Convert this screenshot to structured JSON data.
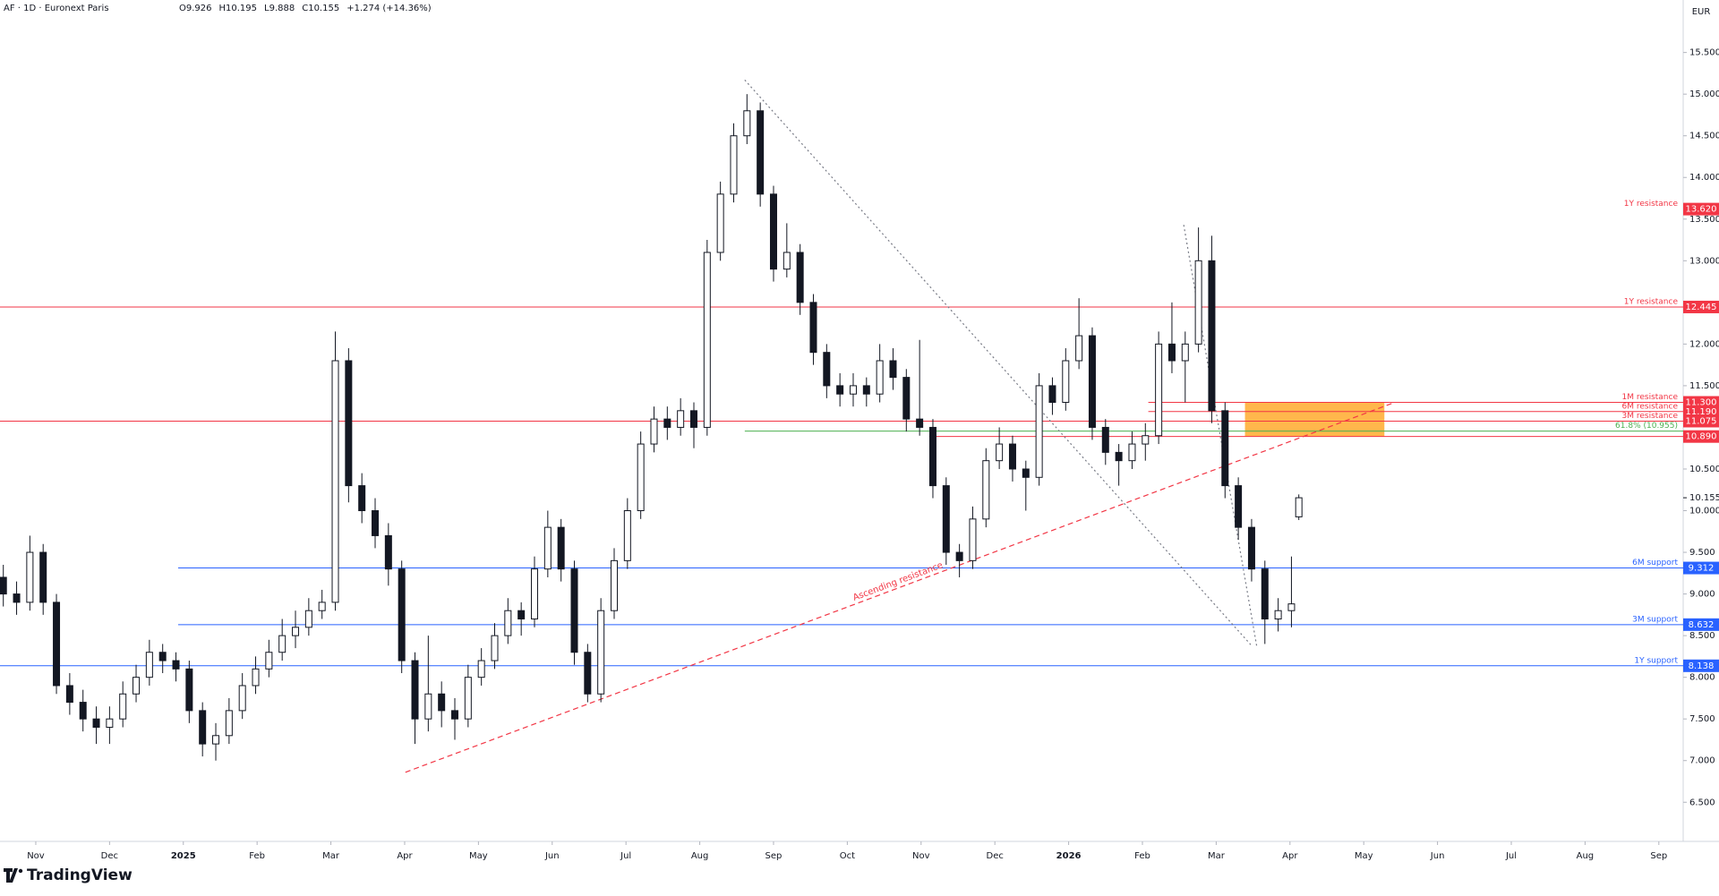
{
  "header": {
    "symbol": "AF · 1D · Euronext Paris",
    "ohlc": [
      "O9.926",
      "H10.195",
      "L9.888",
      "C10.155",
      "+1.274 (+14.36%)"
    ],
    "currency": "EUR",
    "brand": "TradingView"
  },
  "chart_data": {
    "type": "candlestick",
    "up_color": "#ffffff",
    "down_color": "#131722",
    "outline": "#131722",
    "ylim": [
      6.03,
      16.13
    ],
    "yticks": [
      {
        "value": 6.5,
        "label": "6.500"
      },
      {
        "value": 7,
        "label": "7.000"
      },
      {
        "value": 7.5,
        "label": "7.500"
      },
      {
        "value": 8,
        "label": "8.000"
      },
      {
        "value": 8.5,
        "label": "8.500"
      },
      {
        "value": 9,
        "label": "9.000"
      },
      {
        "value": 9.5,
        "label": "9.500"
      },
      {
        "value": 10,
        "label": "10.000"
      },
      {
        "value": 10.5,
        "label": "10.500"
      },
      {
        "value": 11.5,
        "label": "11.500"
      },
      {
        "value": 12,
        "label": "12.000"
      },
      {
        "value": 13,
        "label": "13.000"
      },
      {
        "value": 13.5,
        "label": "13.500"
      },
      {
        "value": 14,
        "label": "14.000"
      },
      {
        "value": 14.5,
        "label": "14.500"
      },
      {
        "value": 15,
        "label": "15.000"
      },
      {
        "value": 15.5,
        "label": "15.500"
      }
    ],
    "xlim": [
      -0.485,
      22.33
    ],
    "xticks": [
      {
        "value": 0,
        "label": "Nov"
      },
      {
        "value": 1,
        "label": "Dec"
      },
      {
        "value": 2,
        "label": "2025"
      },
      {
        "value": 3,
        "label": "Feb"
      },
      {
        "value": 4,
        "label": "Mar"
      },
      {
        "value": 5,
        "label": "Apr"
      },
      {
        "value": 6,
        "label": "May"
      },
      {
        "value": 7,
        "label": "Jun"
      },
      {
        "value": 8,
        "label": "Jul"
      },
      {
        "value": 9,
        "label": "Aug"
      },
      {
        "value": 10,
        "label": "Sep"
      },
      {
        "value": 11,
        "label": "Oct"
      },
      {
        "value": 12,
        "label": "Nov"
      },
      {
        "value": 13,
        "label": "Dec"
      },
      {
        "value": 14,
        "label": "2026"
      },
      {
        "value": 15,
        "label": "Feb"
      },
      {
        "value": 16,
        "label": "Mar"
      },
      {
        "value": 17,
        "label": "Apr"
      },
      {
        "value": 18,
        "label": "May"
      },
      {
        "value": 19,
        "label": "Jun"
      },
      {
        "value": 20,
        "label": "Jul"
      },
      {
        "value": 21,
        "label": "Aug"
      },
      {
        "value": 22,
        "label": "Sep"
      }
    ],
    "x": [
      -0.44,
      -0.26,
      -0.08,
      0.1,
      0.28,
      0.46,
      0.64,
      0.82,
      1.0,
      1.18,
      1.36,
      1.54,
      1.72,
      1.9,
      2.08,
      2.26,
      2.44,
      2.62,
      2.8,
      2.98,
      3.16,
      3.34,
      3.52,
      3.7,
      3.88,
      4.06,
      4.24,
      4.42,
      4.6,
      4.78,
      4.96,
      5.14,
      5.32,
      5.5,
      5.68,
      5.86,
      6.04,
      6.22,
      6.4,
      6.58,
      6.76,
      6.94,
      7.12,
      7.3,
      7.48,
      7.66,
      7.84,
      8.02,
      8.2,
      8.38,
      8.56,
      8.74,
      8.92,
      9.1,
      9.28,
      9.46,
      9.64,
      9.82,
      10.0,
      10.18,
      10.36,
      10.54,
      10.72,
      10.9,
      11.08,
      11.26,
      11.44,
      11.62,
      11.8,
      11.98,
      12.16,
      12.34,
      12.52,
      12.7,
      12.88,
      13.06,
      13.24,
      13.42,
      13.6,
      13.78,
      13.96,
      14.14,
      14.32,
      14.5,
      14.68,
      14.86,
      15.04,
      15.22,
      15.4,
      15.58,
      15.76,
      15.94,
      16.12,
      16.3,
      16.48,
      16.66,
      16.84,
      17.02,
      17.12
    ],
    "open": [
      9.2,
      9.0,
      8.9,
      9.5,
      8.9,
      7.9,
      7.7,
      7.5,
      7.4,
      7.5,
      7.8,
      8.0,
      8.3,
      8.2,
      8.1,
      7.6,
      7.2,
      7.3,
      7.6,
      7.9,
      8.1,
      8.3,
      8.5,
      8.6,
      8.8,
      8.9,
      11.8,
      10.3,
      10.0,
      9.7,
      9.3,
      8.2,
      7.5,
      7.8,
      7.6,
      7.5,
      8.0,
      8.2,
      8.5,
      8.8,
      8.7,
      9.3,
      9.8,
      9.3,
      8.3,
      7.8,
      8.8,
      9.4,
      10.0,
      10.8,
      11.1,
      11.0,
      11.2,
      11.0,
      13.1,
      13.8,
      14.5,
      14.8,
      13.8,
      12.9,
      13.1,
      12.5,
      11.9,
      11.5,
      11.4,
      11.5,
      11.4,
      11.8,
      11.6,
      11.1,
      11.0,
      10.3,
      9.5,
      9.4,
      9.9,
      10.6,
      10.8,
      10.5,
      10.4,
      11.5,
      11.3,
      11.8,
      12.1,
      11.0,
      10.7,
      10.6,
      10.8,
      10.9,
      12.0,
      11.8,
      12.0,
      13.0,
      11.2,
      10.3,
      9.8,
      9.3,
      8.7,
      8.8,
      9.926
    ],
    "high": [
      9.35,
      9.15,
      9.7,
      9.6,
      9.0,
      8.05,
      7.85,
      7.65,
      7.65,
      7.95,
      8.15,
      8.45,
      8.4,
      8.3,
      8.2,
      7.7,
      7.45,
      7.75,
      8.05,
      8.25,
      8.45,
      8.7,
      8.8,
      8.95,
      9.05,
      12.15,
      11.95,
      10.45,
      10.15,
      9.85,
      9.4,
      8.3,
      8.5,
      7.95,
      7.75,
      8.15,
      8.35,
      8.65,
      8.95,
      8.9,
      9.45,
      10.0,
      9.9,
      9.4,
      8.4,
      8.95,
      9.55,
      10.15,
      10.95,
      11.25,
      11.25,
      11.35,
      11.3,
      13.25,
      13.95,
      14.65,
      15.0,
      14.9,
      13.9,
      13.45,
      13.2,
      12.6,
      12.0,
      11.65,
      11.65,
      11.6,
      12.0,
      11.95,
      11.7,
      12.05,
      11.1,
      10.4,
      9.6,
      10.05,
      10.75,
      11.0,
      10.9,
      10.6,
      11.65,
      11.6,
      11.95,
      12.55,
      12.2,
      11.1,
      10.8,
      10.95,
      11.05,
      12.15,
      12.5,
      12.15,
      13.4,
      13.3,
      11.3,
      10.4,
      9.9,
      9.4,
      8.95,
      9.45,
      10.195
    ],
    "low": [
      8.85,
      8.75,
      8.8,
      8.75,
      7.8,
      7.55,
      7.35,
      7.2,
      7.2,
      7.4,
      7.7,
      7.9,
      8.05,
      7.95,
      7.45,
      7.05,
      7.0,
      7.2,
      7.5,
      7.8,
      8.0,
      8.2,
      8.35,
      8.5,
      8.7,
      8.8,
      10.1,
      9.85,
      9.55,
      9.1,
      8.05,
      7.2,
      7.35,
      7.4,
      7.25,
      7.4,
      7.9,
      8.1,
      8.4,
      8.5,
      8.6,
      9.2,
      9.15,
      8.15,
      7.7,
      7.7,
      8.7,
      9.3,
      9.9,
      10.7,
      10.85,
      10.9,
      10.75,
      10.9,
      13.0,
      13.7,
      14.4,
      13.65,
      12.75,
      12.8,
      12.35,
      11.75,
      11.35,
      11.25,
      11.25,
      11.25,
      11.3,
      11.45,
      10.95,
      10.9,
      10.15,
      9.35,
      9.2,
      9.3,
      9.8,
      10.5,
      10.35,
      10.0,
      10.3,
      11.15,
      11.2,
      11.7,
      10.85,
      10.55,
      10.3,
      10.5,
      10.6,
      10.8,
      11.65,
      11.3,
      11.9,
      11.05,
      10.15,
      9.65,
      9.15,
      8.4,
      8.55,
      8.6,
      9.888
    ],
    "close": [
      9.0,
      8.9,
      9.5,
      8.9,
      7.9,
      7.7,
      7.5,
      7.4,
      7.5,
      7.8,
      8.0,
      8.3,
      8.2,
      8.1,
      7.6,
      7.2,
      7.3,
      7.6,
      7.9,
      8.1,
      8.3,
      8.5,
      8.6,
      8.8,
      8.9,
      11.8,
      10.3,
      10.0,
      9.7,
      9.3,
      8.2,
      7.5,
      7.8,
      7.6,
      7.5,
      8.0,
      8.2,
      8.5,
      8.8,
      8.7,
      9.3,
      9.8,
      9.3,
      8.3,
      7.8,
      8.8,
      9.4,
      10.0,
      10.8,
      11.1,
      11.0,
      11.2,
      11.0,
      13.1,
      13.8,
      14.5,
      14.8,
      13.8,
      12.9,
      13.1,
      12.5,
      11.9,
      11.5,
      11.4,
      11.5,
      11.4,
      11.8,
      11.6,
      11.1,
      11.0,
      10.3,
      9.5,
      9.4,
      9.9,
      10.6,
      10.8,
      10.5,
      10.4,
      11.5,
      11.3,
      11.8,
      12.1,
      11.0,
      10.7,
      10.6,
      10.8,
      10.9,
      12.0,
      11.8,
      12.0,
      13.0,
      11.2,
      10.3,
      9.8,
      9.3,
      8.7,
      8.8,
      8.881,
      10.155
    ],
    "last_price": {
      "value": 10.155,
      "label": "10.155"
    },
    "levels": [
      {
        "value": 13.62,
        "tag": "13.620",
        "label": "1Y resistance",
        "color": "#f23645",
        "line": false
      },
      {
        "value": 12.445,
        "tag": "12.445",
        "label": "1Y resistance",
        "color": "#f23645",
        "start": -0.485,
        "line": true
      },
      {
        "value": 11.3,
        "tag": "11.300",
        "label": "1M resistance",
        "color": "#f23645",
        "start": 15.08,
        "line": true
      },
      {
        "value": 11.19,
        "tag": "11.190",
        "label": "6M resistance",
        "color": "#f23645",
        "start": 15.08,
        "line": true
      },
      {
        "value": 11.075,
        "tag": "11.075",
        "label": "3M resistance",
        "color": "#f23645",
        "start": -0.485,
        "line": true
      },
      {
        "value": 10.955,
        "label": "61.8% (10.955)",
        "color": "#4caf50",
        "start": 9.61,
        "line": true
      },
      {
        "value": 10.89,
        "tag": "10.890",
        "color": "#f23645",
        "start": 12.11,
        "line": true
      },
      {
        "value": 9.312,
        "tag": "9.312",
        "label": "6M support",
        "color": "#2962ff",
        "start": 1.93,
        "line": true
      },
      {
        "value": 8.632,
        "tag": "8.632",
        "label": "3M support",
        "color": "#2962ff",
        "start": 1.93,
        "line": true
      },
      {
        "value": 8.138,
        "tag": "8.138",
        "label": "1Y support",
        "color": "#2962ff",
        "start": -0.485,
        "line": true
      }
    ],
    "zone": {
      "x": [
        16.39,
        18.28
      ],
      "y": [
        10.89,
        11.3
      ],
      "color": "#ff9800"
    },
    "trendlines": [
      {
        "x": [
          5.01,
          18.42
        ],
        "y": [
          6.86,
          11.3
        ],
        "color": "#f23645",
        "style": "dashed",
        "label": "Ascending resistance"
      },
      {
        "x": [
          9.61,
          16.49
        ],
        "y": [
          15.17,
          8.37
        ],
        "color": "#787b86",
        "style": "dotted"
      },
      {
        "x": [
          15.56,
          16.55
        ],
        "y": [
          13.43,
          8.37
        ],
        "color": "#787b86",
        "style": "dotted"
      }
    ]
  }
}
